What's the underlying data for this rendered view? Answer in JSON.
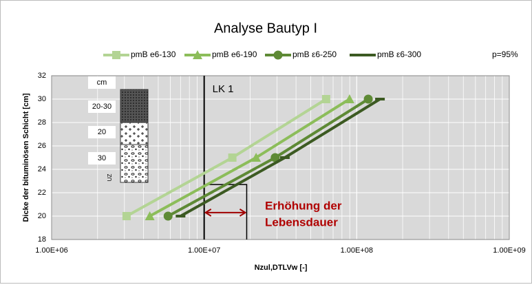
{
  "chart_data": {
    "type": "line",
    "title": "Analyse Bautyp I",
    "x_label": "Nzul,DTLVw [-]",
    "y_label": "Dicke der bituminösen Schicht [cm]",
    "log_x": true,
    "grid": true,
    "xlim": [
      1000000,
      1000000000
    ],
    "xticks": [
      {
        "value": 1000000,
        "label": "1.00E+06"
      },
      {
        "value": 10000000,
        "label": "1.00E+07"
      },
      {
        "value": 100000000,
        "label": "1.00E+08"
      },
      {
        "value": 1000000000,
        "label": "1.00E+09"
      }
    ],
    "ylim": [
      18,
      32
    ],
    "yticks": [
      18,
      20,
      22,
      24,
      26,
      28,
      30,
      32
    ],
    "series": [
      {
        "name": "pmB e6-130",
        "color": "#b3d494",
        "marker": "square",
        "x": [
          3100000,
          15300000,
          63000000
        ],
        "values": [
          20,
          25,
          30
        ]
      },
      {
        "name": "pmB e6-190",
        "color": "#8cbd5a",
        "marker": "triangle",
        "x": [
          4400000,
          21900000,
          89700000
        ],
        "values": [
          20,
          25,
          30
        ]
      },
      {
        "name": "pmB ε6-250",
        "color": "#5e8a35",
        "marker": "circle",
        "x": [
          5800000,
          29200000,
          119000000
        ],
        "values": [
          20,
          25,
          30
        ]
      },
      {
        "name": "pmB ε6-300",
        "color": "#3c5a22",
        "marker": "dash",
        "x": [
          7000000,
          33800000,
          142000000
        ],
        "values": [
          20,
          25,
          30
        ]
      }
    ],
    "note": "p=95%",
    "reference_line": {
      "x": 10000000,
      "label": "LK 1"
    },
    "range": {
      "x": [
        10000000,
        19000000
      ],
      "y_top": 22.7,
      "label_lines": [
        "Erhöhung der",
        "Lebensdauer"
      ]
    },
    "layers": {
      "unit": "cm",
      "labels": [
        "20-30",
        "20",
        "30"
      ],
      "bottom": "UZ"
    }
  }
}
